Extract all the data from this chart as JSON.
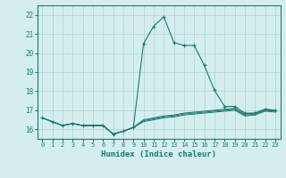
{
  "x": [
    0,
    1,
    2,
    3,
    4,
    5,
    6,
    7,
    8,
    9,
    10,
    11,
    12,
    13,
    14,
    15,
    16,
    17,
    18,
    19,
    20,
    21,
    22,
    23
  ],
  "line1": [
    16.6,
    16.4,
    16.2,
    16.3,
    16.2,
    16.2,
    16.2,
    15.75,
    15.9,
    16.1,
    20.5,
    21.4,
    21.9,
    20.55,
    20.4,
    20.4,
    19.35,
    18.05,
    17.2,
    17.2,
    16.85,
    16.85,
    17.05,
    17.0
  ],
  "line2": [
    16.6,
    16.4,
    16.2,
    16.3,
    16.2,
    16.2,
    16.2,
    15.75,
    15.9,
    16.1,
    16.5,
    16.6,
    16.7,
    16.75,
    16.85,
    16.9,
    16.95,
    17.0,
    17.05,
    17.1,
    16.8,
    16.85,
    17.05,
    17.0
  ],
  "line3": [
    16.6,
    16.4,
    16.2,
    16.3,
    16.2,
    16.2,
    16.2,
    15.75,
    15.9,
    16.1,
    16.45,
    16.55,
    16.65,
    16.7,
    16.8,
    16.85,
    16.9,
    16.95,
    17.0,
    17.05,
    16.75,
    16.8,
    17.0,
    16.95
  ],
  "line4": [
    16.6,
    16.4,
    16.2,
    16.3,
    16.2,
    16.2,
    16.2,
    15.75,
    15.9,
    16.1,
    16.4,
    16.5,
    16.6,
    16.65,
    16.75,
    16.8,
    16.85,
    16.9,
    16.95,
    17.0,
    16.7,
    16.75,
    16.95,
    16.9
  ],
  "line_color": "#1a7a6e",
  "bg_color": "#d4eeee",
  "grid_color": "#b0d0d0",
  "xlabel": "Humidex (Indice chaleur)",
  "ylim": [
    15.5,
    22.5
  ],
  "xlim": [
    -0.5,
    23.5
  ],
  "yticks": [
    16,
    17,
    18,
    19,
    20,
    21,
    22
  ],
  "xticks": [
    0,
    1,
    2,
    3,
    4,
    5,
    6,
    7,
    8,
    9,
    10,
    11,
    12,
    13,
    14,
    15,
    16,
    17,
    18,
    19,
    20,
    21,
    22,
    23
  ]
}
